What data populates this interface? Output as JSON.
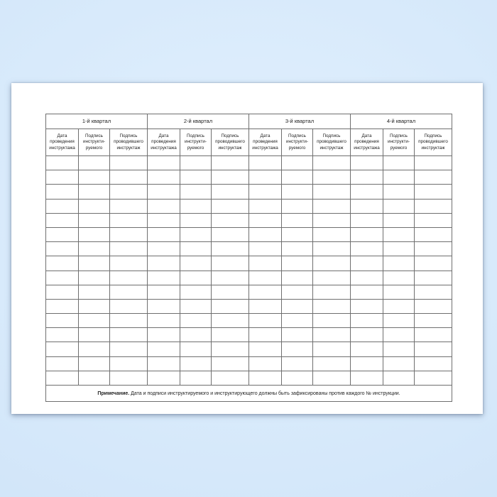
{
  "document": {
    "quarters": [
      {
        "label": "1-й квартал"
      },
      {
        "label": "2-й квартал"
      },
      {
        "label": "3-й квартал"
      },
      {
        "label": "4-й квартал"
      }
    ],
    "sub_columns": [
      "Дата\nпроведения\nинструктажа",
      "Подпись\nинструкти-\nруемого",
      "Подпись\nпроводившего\nинструктаж"
    ],
    "body_rows": 16,
    "columns_per_quarter": 3,
    "note": {
      "label": "Примечание.",
      "text": " Дата и подписи инструктируемого и инструктирующего должны быть зафиксированы против каждого № инструкции."
    },
    "colors": {
      "page_background": "#ffffff",
      "desktop_background_top": "#e2f0fd",
      "desktop_background_bottom": "#cde2f7",
      "table_outer_border": "#454545",
      "grid_line": "#6f6f6f",
      "text": "#1e1e1e"
    }
  }
}
